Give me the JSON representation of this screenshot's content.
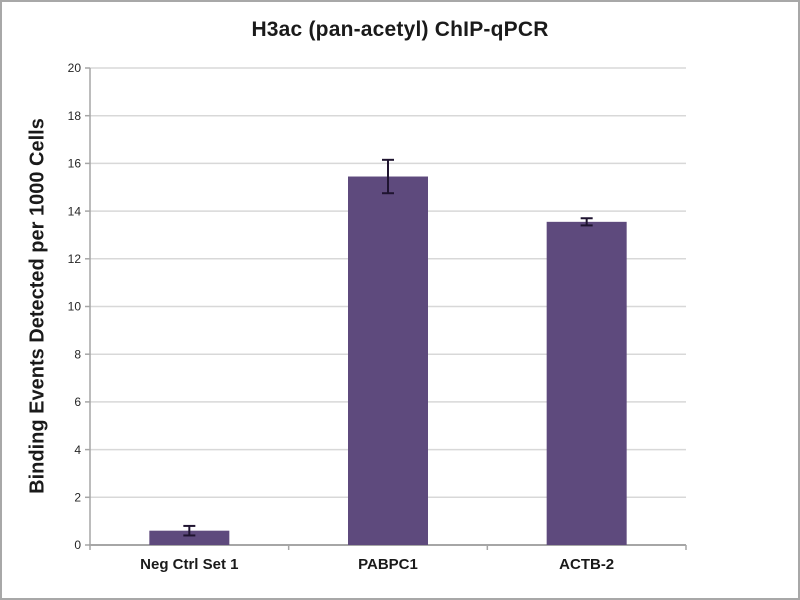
{
  "chart_data": {
    "type": "bar",
    "title": "H3ac (pan-acetyl) ChIP-qPCR",
    "ylabel": "Binding Events Detected per 1000 Cells",
    "xlabel": "",
    "categories": [
      "Neg Ctrl Set 1",
      "PABPC1",
      "ACTB-2"
    ],
    "values": [
      0.6,
      15.45,
      13.55
    ],
    "errors": [
      0.2,
      0.7,
      0.15
    ],
    "ylim": [
      0,
      20
    ],
    "ytick_step": 2,
    "ytick_labels": [
      "0",
      "2",
      "4",
      "6",
      "8",
      "10",
      "12",
      "14",
      "16",
      "18",
      "20"
    ],
    "grid": true,
    "legend_position": "none",
    "bar_color": "#5e4a7d",
    "error_bar_color": "#1f1430",
    "grid_color": "#d8d8d8",
    "axis_color": "#a6a6a6",
    "tick_label_color": "#262626",
    "text_color": "#1a1a1a",
    "background_color": "#ffffff",
    "frame_border_color": "#a8a8a8"
  }
}
